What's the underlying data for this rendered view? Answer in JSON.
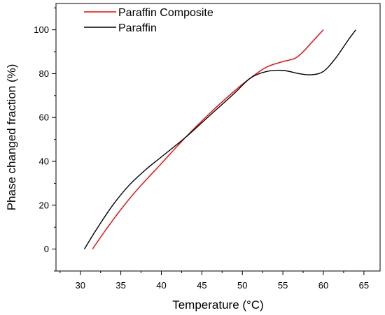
{
  "chart_data": {
    "type": "line",
    "xlabel": "Temperature (°C)",
    "ylabel": "Phase changed fraction (%)",
    "xlim": [
      27,
      67
    ],
    "ylim": [
      -10,
      112
    ],
    "x_ticks": [
      30,
      35,
      40,
      45,
      50,
      55,
      60,
      65
    ],
    "y_ticks": [
      0,
      20,
      40,
      60,
      80,
      100
    ],
    "grid": false,
    "legend_position": "top-left",
    "series": [
      {
        "name": "Paraffin Composite",
        "color": "#ff0000",
        "x": [
          31.5,
          33,
          35,
          37,
          40,
          43,
          46,
          49,
          51,
          53,
          55,
          56.5,
          57.5,
          58.5,
          60
        ],
        "y": [
          0,
          8,
          18,
          27,
          39,
          51,
          62,
          72,
          78,
          83,
          85.5,
          87,
          90,
          94,
          100
        ]
      },
      {
        "name": "Paraffin",
        "color": "#000000",
        "x": [
          30.5,
          32,
          34,
          36,
          38,
          40,
          43,
          46,
          49,
          51,
          53,
          55,
          57,
          58.5,
          60,
          61.5,
          63,
          64
        ],
        "y": [
          0,
          9,
          20,
          29,
          36,
          42,
          51,
          61,
          71,
          78,
          81,
          81.5,
          80,
          79.5,
          81,
          87,
          95,
          100
        ]
      }
    ]
  }
}
